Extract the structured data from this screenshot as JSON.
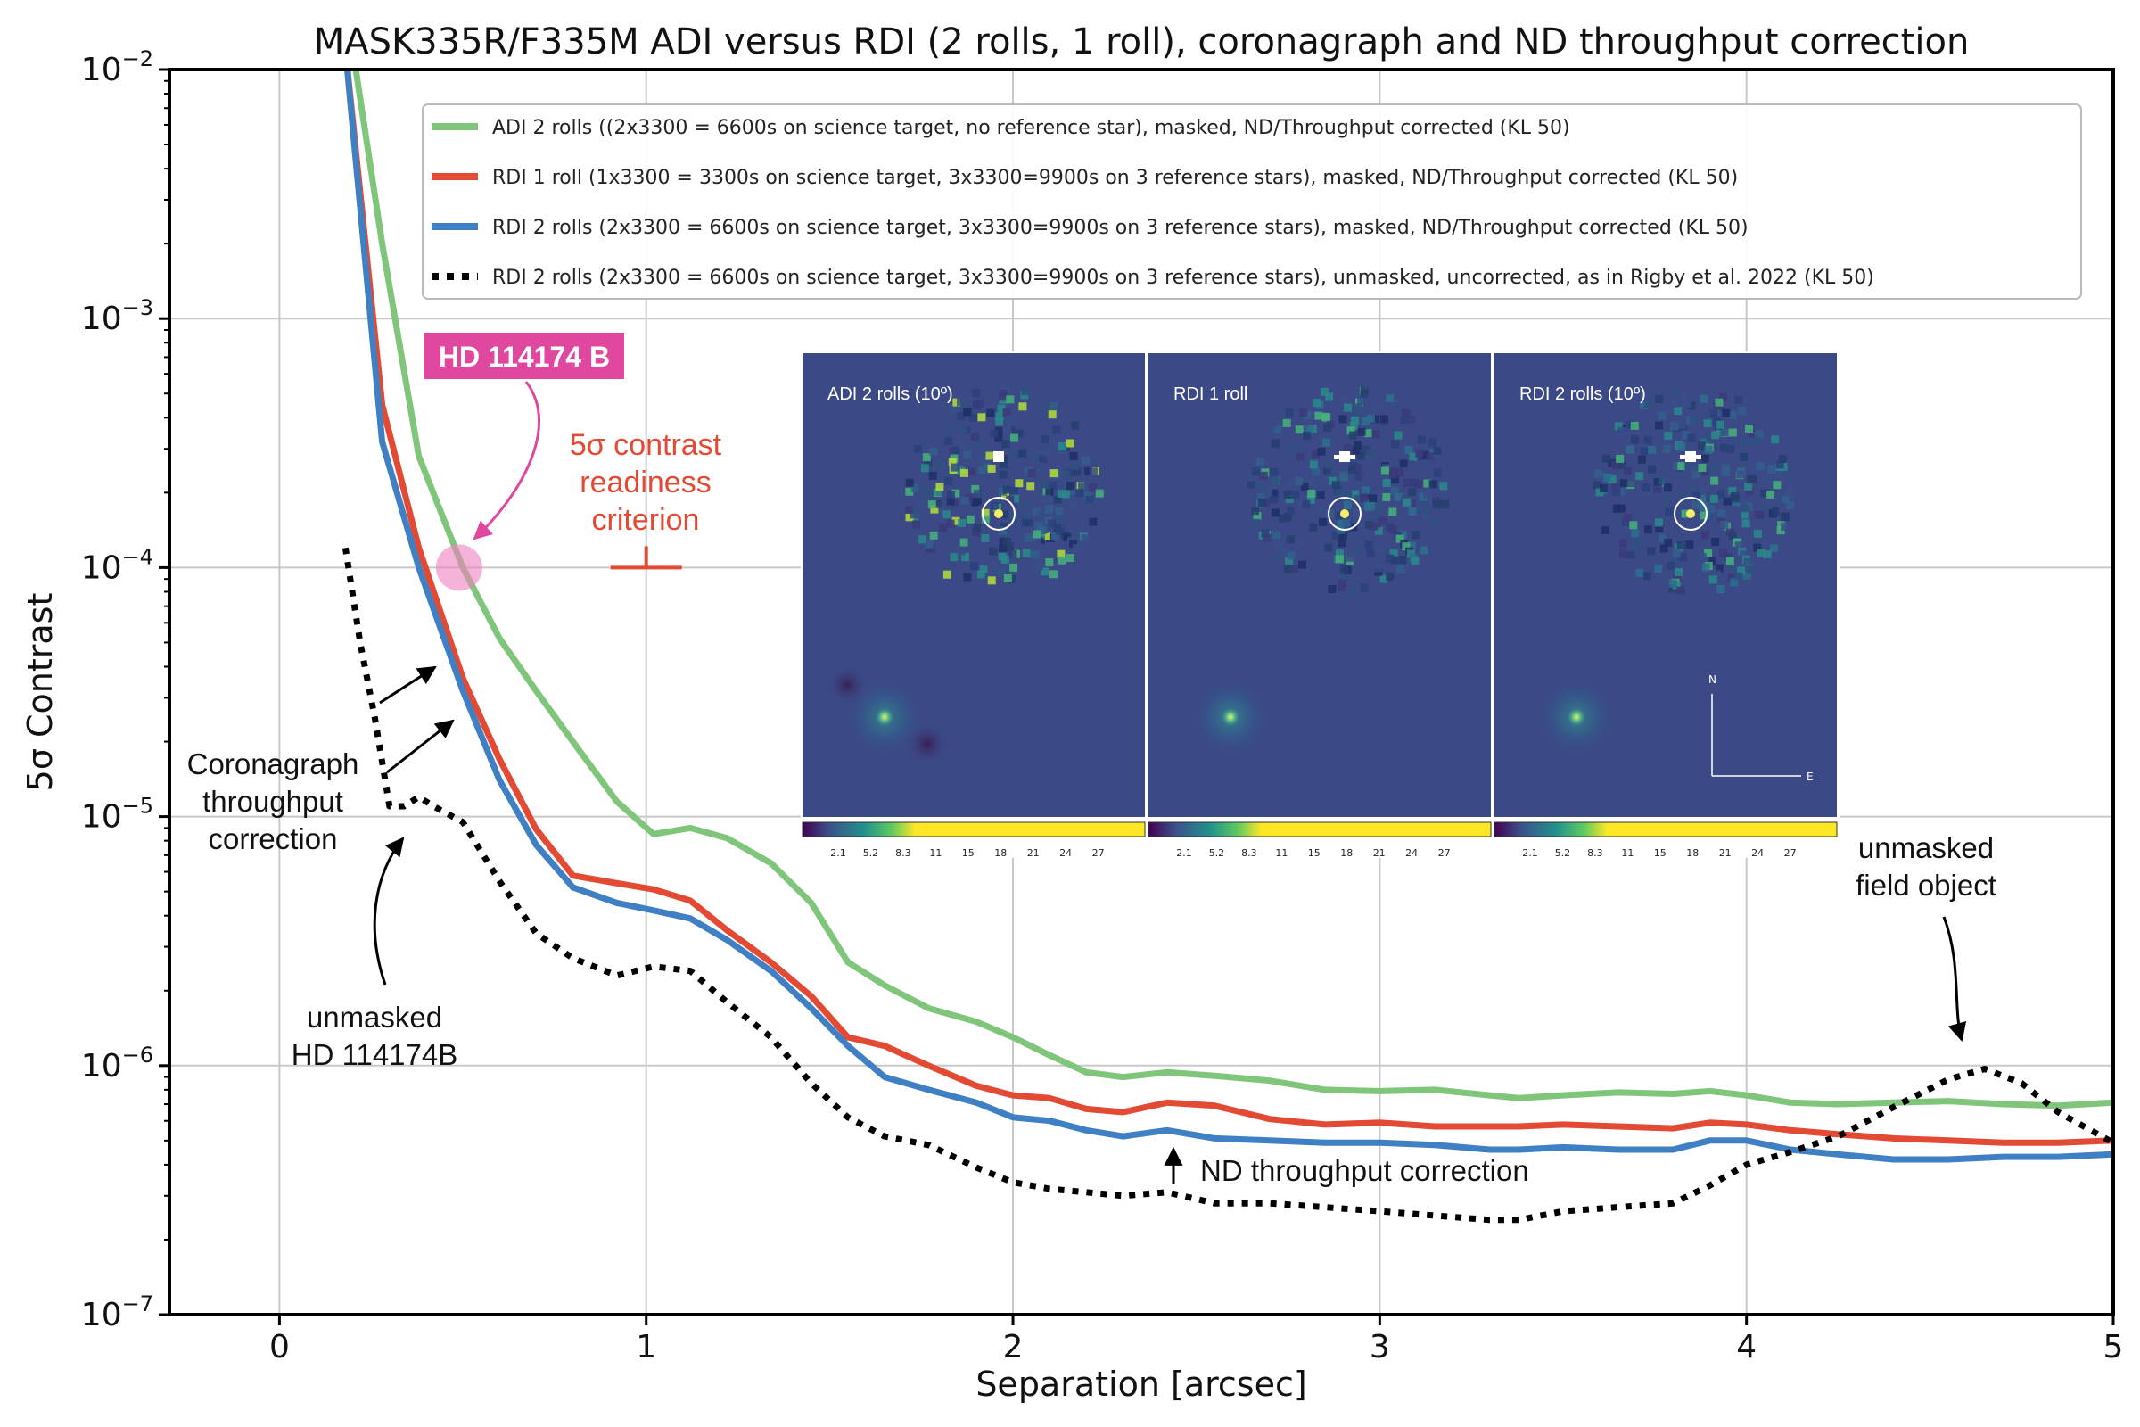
{
  "chart_data": {
    "type": "line",
    "title": "MASK335R/F335M ADI versus RDI (2 rolls, 1 roll), coronagraph and ND throughput correction",
    "xlabel": "Separation [arcsec]",
    "ylabel": "5σ Contrast",
    "xlim": [
      -0.3,
      5.0
    ],
    "ylim_log10": [
      -7,
      -2
    ],
    "yscale": "log",
    "grid": true,
    "legend_position": "top-right",
    "x_ticks": [
      "0",
      "1",
      "2",
      "3",
      "4",
      "5"
    ],
    "y_ticks": [
      {
        "base": "10",
        "exp": "−2"
      },
      {
        "base": "10",
        "exp": "−3"
      },
      {
        "base": "10",
        "exp": "−4"
      },
      {
        "base": "10",
        "exp": "−5"
      },
      {
        "base": "10",
        "exp": "−6"
      },
      {
        "base": "10",
        "exp": "−7"
      }
    ],
    "series": [
      {
        "name": "ADI 2 rolls ((2x3300 = 6600s on science target, no reference star), masked, ND/Throughput corrected (KL 50)",
        "color": "#7fc67b",
        "style": "solid",
        "x": [
          0.2,
          0.28,
          0.38,
          0.5,
          0.6,
          0.7,
          0.8,
          0.92,
          1.02,
          1.12,
          1.22,
          1.34,
          1.45,
          1.55,
          1.65,
          1.77,
          1.9,
          2.0,
          2.1,
          2.2,
          2.3,
          2.42,
          2.55,
          2.7,
          2.85,
          3.0,
          3.15,
          3.3,
          3.38,
          3.5,
          3.65,
          3.8,
          3.9,
          4.0,
          4.12,
          4.25,
          4.4,
          4.55,
          4.7,
          4.85,
          5.0
        ],
        "y": [
          0.012,
          0.002,
          0.00028,
          0.0001,
          5.2e-05,
          3.2e-05,
          2e-05,
          1.15e-05,
          8.5e-06,
          9e-06,
          8.2e-06,
          6.5e-06,
          4.5e-06,
          2.6e-06,
          2.1e-06,
          1.7e-06,
          1.5e-06,
          1.3e-06,
          1.1e-06,
          9.4e-07,
          9e-07,
          9.4e-07,
          9.1e-07,
          8.7e-07,
          8e-07,
          7.9e-07,
          8e-07,
          7.6e-07,
          7.4e-07,
          7.6e-07,
          7.8e-07,
          7.7e-07,
          7.9e-07,
          7.6e-07,
          7.1e-07,
          7e-07,
          7.1e-07,
          7.2e-07,
          7e-07,
          6.9e-07,
          7.1e-07
        ]
      },
      {
        "name": "RDI 1 roll (1x3300 = 3300s on science target, 3x3300=9900s on 3 reference stars), masked, ND/Throughput corrected (KL 50)",
        "color": "#e34a33",
        "style": "solid",
        "x": [
          0.18,
          0.28,
          0.38,
          0.5,
          0.6,
          0.7,
          0.8,
          0.92,
          1.02,
          1.12,
          1.22,
          1.34,
          1.45,
          1.55,
          1.65,
          1.77,
          1.9,
          2.0,
          2.1,
          2.2,
          2.3,
          2.42,
          2.55,
          2.7,
          2.85,
          3.0,
          3.15,
          3.3,
          3.38,
          3.5,
          3.65,
          3.8,
          3.9,
          4.0,
          4.12,
          4.25,
          4.4,
          4.55,
          4.7,
          4.85,
          5.0
        ],
        "y": [
          0.012,
          0.00045,
          0.00012,
          3.6e-05,
          1.7e-05,
          8.9e-06,
          5.8e-06,
          5.4e-06,
          5.1e-06,
          4.6e-06,
          3.5e-06,
          2.6e-06,
          1.9e-06,
          1.3e-06,
          1.2e-06,
          1e-06,
          8.3e-07,
          7.6e-07,
          7.4e-07,
          6.7e-07,
          6.5e-07,
          7.1e-07,
          6.9e-07,
          6.1e-07,
          5.8e-07,
          5.9e-07,
          5.7e-07,
          5.7e-07,
          5.7e-07,
          5.8e-07,
          5.7e-07,
          5.6e-07,
          5.9e-07,
          5.8e-07,
          5.5e-07,
          5.3e-07,
          5.1e-07,
          5e-07,
          4.9e-07,
          4.9e-07,
          5e-07
        ]
      },
      {
        "name": "RDI 2 rolls (2x3300 = 6600s on science target, 3x3300=9900s on 3 reference stars), masked, ND/Throughput corrected (KL 50)",
        "color": "#3f7fc4",
        "style": "solid",
        "x": [
          0.18,
          0.28,
          0.38,
          0.5,
          0.6,
          0.7,
          0.8,
          0.92,
          1.02,
          1.12,
          1.22,
          1.34,
          1.45,
          1.55,
          1.65,
          1.77,
          1.9,
          2.0,
          2.1,
          2.2,
          2.3,
          2.42,
          2.55,
          2.7,
          2.85,
          3.0,
          3.15,
          3.3,
          3.38,
          3.5,
          3.65,
          3.8,
          3.9,
          4.0,
          4.12,
          4.25,
          4.4,
          4.55,
          4.7,
          4.85,
          5.0
        ],
        "y": [
          0.012,
          0.00032,
          0.0001,
          3.2e-05,
          1.4e-05,
          7.7e-06,
          5.2e-06,
          4.5e-06,
          4.2e-06,
          3.9e-06,
          3.2e-06,
          2.4e-06,
          1.7e-06,
          1.2e-06,
          9e-07,
          8e-07,
          7.1e-07,
          6.2e-07,
          6e-07,
          5.5e-07,
          5.2e-07,
          5.5e-07,
          5.1e-07,
          5e-07,
          4.9e-07,
          4.9e-07,
          4.8e-07,
          4.6e-07,
          4.6e-07,
          4.7e-07,
          4.6e-07,
          4.6e-07,
          5e-07,
          5e-07,
          4.6e-07,
          4.4e-07,
          4.2e-07,
          4.2e-07,
          4.3e-07,
          4.3e-07,
          4.4e-07
        ]
      },
      {
        "name": "RDI 2 rolls (2x3300 = 6600s on science target, 3x3300=9900s on 3 reference stars), unmasked, uncorrected, as in Rigby et al. 2022 (KL 50)",
        "color": "#000000",
        "style": "dotted",
        "x": [
          0.18,
          0.22,
          0.26,
          0.3,
          0.34,
          0.38,
          0.42,
          0.5,
          0.6,
          0.7,
          0.8,
          0.92,
          1.02,
          1.12,
          1.22,
          1.34,
          1.45,
          1.55,
          1.65,
          1.77,
          1.9,
          2.0,
          2.1,
          2.2,
          2.3,
          2.42,
          2.55,
          2.7,
          2.85,
          3.0,
          3.15,
          3.3,
          3.38,
          3.5,
          3.65,
          3.8,
          3.9,
          4.0,
          4.12,
          4.25,
          4.4,
          4.55,
          4.65,
          4.75,
          4.85,
          5.0
        ],
        "y": [
          0.00012,
          5e-05,
          2.5e-05,
          1.1e-05,
          1.1e-05,
          1.2e-05,
          1.1e-05,
          9.5e-06,
          5.5e-06,
          3.4e-06,
          2.7e-06,
          2.3e-06,
          2.5e-06,
          2.4e-06,
          1.8e-06,
          1.3e-06,
          8.5e-07,
          6.2e-07,
          5.2e-07,
          4.8e-07,
          3.9e-07,
          3.4e-07,
          3.2e-07,
          3.1e-07,
          3e-07,
          3.1e-07,
          2.8e-07,
          2.8e-07,
          2.7e-07,
          2.6e-07,
          2.5e-07,
          2.4e-07,
          2.4e-07,
          2.6e-07,
          2.7e-07,
          2.8e-07,
          3.3e-07,
          4e-07,
          4.5e-07,
          5.2e-07,
          6.8e-07,
          8.8e-07,
          9.7e-07,
          8.5e-07,
          6.5e-07,
          4.9e-07
        ]
      }
    ],
    "annotations": {
      "hd_label": "HD 114174 B",
      "contrast_criterion": [
        "5σ contrast",
        "readiness",
        "criterion"
      ],
      "coronagraph": [
        "Coronagraph",
        "throughput",
        "correction"
      ],
      "unmasked_hd": [
        "unmasked",
        "HD 114174B"
      ],
      "nd_correction": "ND throughput correction",
      "field_object": [
        "unmasked",
        "field object"
      ]
    },
    "criterion_point": {
      "x": 1.0,
      "y": 0.0001
    },
    "planet_point": {
      "x": 0.49,
      "y": 0.0001
    },
    "inset": {
      "panels": [
        {
          "label": "ADI 2 rolls (10º)"
        },
        {
          "label": "RDI 1 roll"
        },
        {
          "label": "RDI 2 rolls (10º)"
        }
      ],
      "colorbar_ticks": [
        "2.1",
        "5.2",
        "8.3",
        "11",
        "15",
        "18",
        "21",
        "24",
        "27"
      ],
      "compass": {
        "north": "N",
        "east": "E"
      }
    }
  }
}
